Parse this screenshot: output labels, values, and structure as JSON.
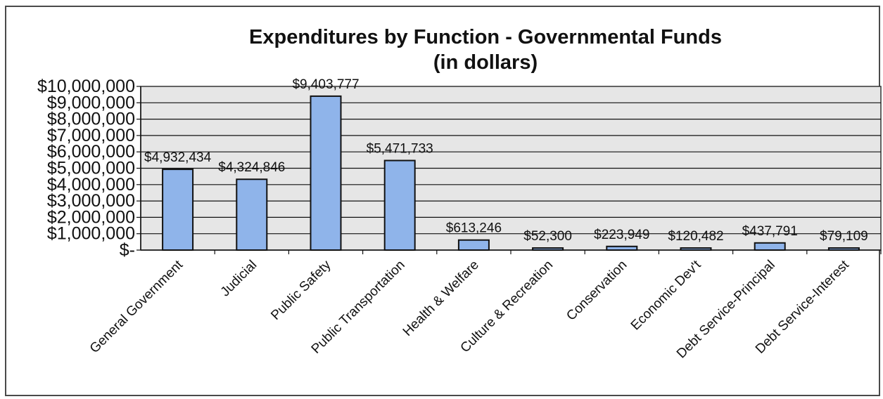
{
  "chart_data": {
    "type": "bar",
    "title_lines": [
      "Expenditures by Function - Governmental Funds",
      "(in dollars)"
    ],
    "categories": [
      "General Government",
      "Judicial",
      "Public Safety",
      "Public Transportation",
      "Health & Welfare",
      "Culture & Recreation",
      "Conservation",
      "Economic Dev't",
      "Debt Service-Principal",
      "Debt Service-Interest"
    ],
    "values": [
      4932434,
      4324846,
      9403777,
      5471733,
      613246,
      52300,
      223949,
      120482,
      437791,
      79109
    ],
    "data_labels": [
      "$4,932,434",
      "$4,324,846",
      "$9,403,777",
      "$5,471,733",
      "$613,246",
      "$52,300",
      "$223,949",
      "$120,482",
      "$437,791",
      "$79,109"
    ],
    "ylim": [
      0,
      10000000
    ],
    "yticks": [
      0,
      1000000,
      2000000,
      3000000,
      4000000,
      5000000,
      6000000,
      7000000,
      8000000,
      9000000,
      10000000
    ],
    "ytick_labels": [
      "$-",
      "$1,000,000",
      "$2,000,000",
      "$3,000,000",
      "$4,000,000",
      "$5,000,000",
      "$6,000,000",
      "$7,000,000",
      "$8,000,000",
      "$9,000,000",
      "$10,000,000"
    ],
    "grid": true,
    "legend": "none",
    "bar_color": "#8fb4ea",
    "bar_edge_color": "#111111",
    "plot_background": "#e6e6e6"
  }
}
